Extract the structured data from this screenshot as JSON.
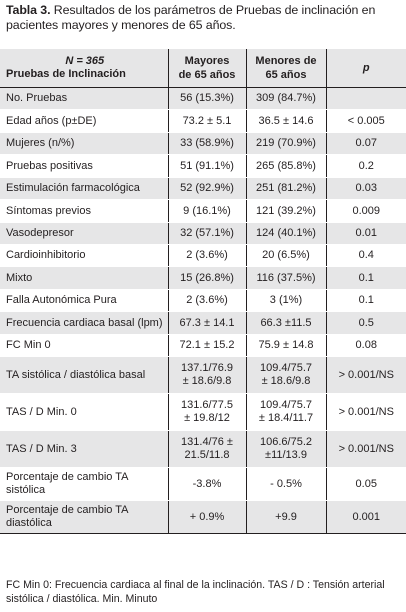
{
  "caption": {
    "label": "Tabla 3.",
    "text": " Resultados de los parámetros de Pruebas de inclinación en pacientes mayores y menores de 65 años."
  },
  "table": {
    "header": {
      "n_line": "N = 365",
      "label": "Pruebas de Inclinación",
      "col_older": "Mayores\nde 65 años",
      "col_younger": "Menores de\n65 años",
      "col_p": "p"
    },
    "rows": [
      {
        "label": "No. Pruebas",
        "older": "56 (15.3%)",
        "younger": "309 (84.7%)",
        "p": ""
      },
      {
        "label": "Edad años (p±DE)",
        "older": "73.2 ± 5.1",
        "younger": "36.5 ± 14.6",
        "p": "< 0.005"
      },
      {
        "label": "Mujeres (n/%)",
        "older": "33 (58.9%)",
        "younger": "219 (70.9%)",
        "p": "0.07"
      },
      {
        "label": "Pruebas positivas",
        "older": "51 (91.1%)",
        "younger": "265 (85.8%)",
        "p": "0.2"
      },
      {
        "label": "Estimulación farmacológica",
        "older": "52 (92.9%)",
        "younger": "251 (81.2%)",
        "p": "0.03"
      },
      {
        "label": "Síntomas previos",
        "older": "9 (16.1%)",
        "younger": "121 (39.2%)",
        "p": "0.009"
      },
      {
        "label": "Vasodepresor",
        "older": "32 (57.1%)",
        "younger": "124 (40.1%)",
        "p": "0.01"
      },
      {
        "label": "Cardioinhibitorio",
        "older": "2 (3.6%)",
        "younger": "20 (6.5%)",
        "p": "0.4"
      },
      {
        "label": "Mixto",
        "older": "15 (26.8%)",
        "younger": "116 (37.5%)",
        "p": "0.1"
      },
      {
        "label": "Falla Autonómica Pura",
        "older": "2 (3.6%)",
        "younger": "3 (1%)",
        "p": "0.1"
      },
      {
        "label": "Frecuencia cardiaca basal (lpm)",
        "older": "67.3 ± 14.1",
        "younger": "66.3 ±11.5",
        "p": "0.5"
      },
      {
        "label": "FC Min 0",
        "older": "72.1 ± 15.2",
        "younger": "75.9 ± 14.8",
        "p": "0.08"
      },
      {
        "label": "TA sistólica / diastólica basal",
        "older": "137.1/76.9\n± 18.6/9.8",
        "younger": "109.4/75.7\n± 18.6/9.8",
        "p": "> 0.001/NS"
      },
      {
        "label": "TAS / D Min. 0",
        "older": "131.6/77.5\n± 19.8/12",
        "younger": "109.4/75.7\n± 18.4/11.7",
        "p": "> 0.001/NS"
      },
      {
        "label": "TAS / D Min. 3",
        "older": "131.4/76 ±\n21.5/11.8",
        "younger": "106.6/75.2\n±11/13.9",
        "p": "> 0.001/NS"
      },
      {
        "label": "Porcentaje de cambio TA\nsistólica",
        "older": "-3.8%",
        "younger": "- 0.5%",
        "p": "0.05"
      },
      {
        "label": "Porcentaje de cambio TA\ndiastólica",
        "older": "+ 0.9%",
        "younger": "+9.9",
        "p": "0.001"
      }
    ]
  },
  "footnote": "FC Min 0: Frecuencia cardiaca al final de la inclinación. TAS / D : Tensión arterial sistólica / diastólica. Min. Minuto",
  "colors": {
    "shade": "#e6e6e7",
    "text": "#231f20"
  }
}
